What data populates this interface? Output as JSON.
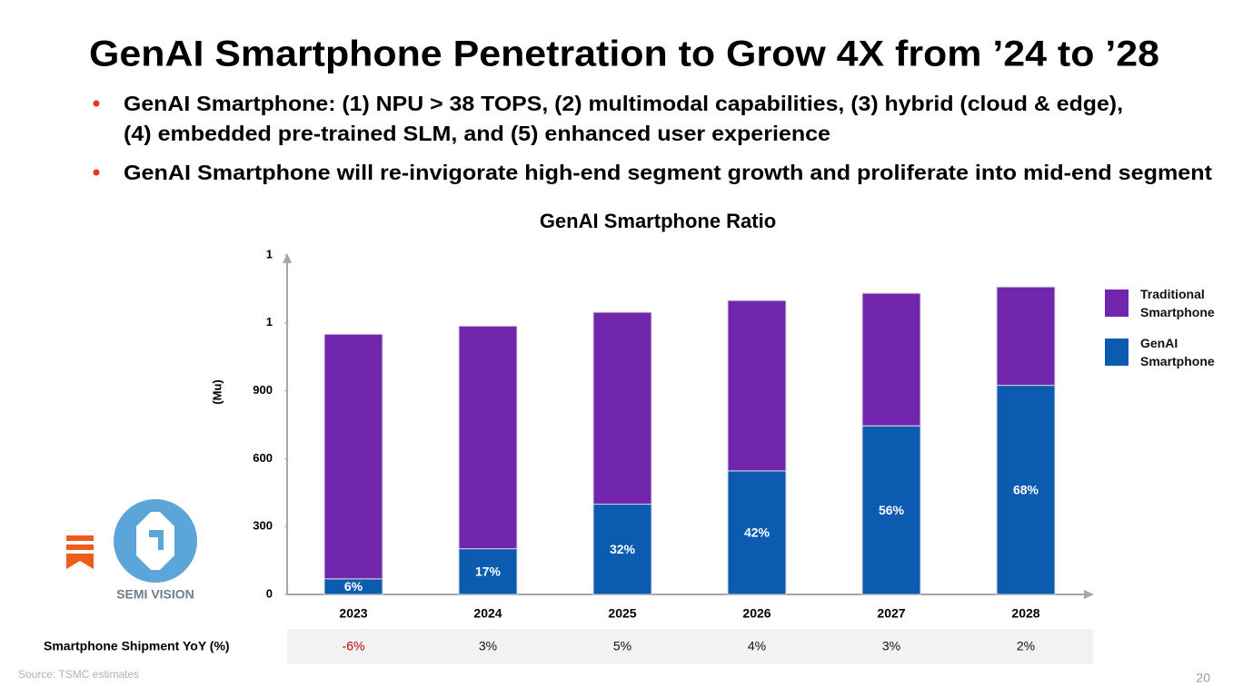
{
  "title": "GenAI Smartphone Penetration to Grow 4X from ’24 to ’28",
  "bullets": [
    [
      "GenAI Smartphone: (1) NPU > 38 TOPS, (2) multimodal capabilities, (3) hybrid (cloud & edge),",
      "(4) embedded pre-trained SLM, and (5) enhanced user experience"
    ],
    [
      "GenAI Smartphone will re-invigorate high-end segment growth and proliferate into mid-end segment"
    ]
  ],
  "chart_data": {
    "type": "bar",
    "stacked": true,
    "title": "GenAI Smartphone Ratio",
    "ylabel": "(Mu)",
    "categories": [
      "2023",
      "2024",
      "2025",
      "2026",
      "2027",
      "2028"
    ],
    "series": [
      {
        "name": "GenAI Smartphone",
        "color": "#0b5cb0",
        "values": [
          69,
          202,
          399,
          546,
          745,
          924
        ],
        "value_labels": [
          {
            "value": 6,
            "label": "6%"
          },
          {
            "value": 17,
            "label": "17%"
          },
          {
            "value": 32,
            "label": "32%"
          },
          {
            "value": 42,
            "label": "42%"
          },
          {
            "value": 56,
            "label": "56%"
          },
          {
            "value": 68,
            "label": "68%"
          }
        ]
      },
      {
        "name": "Traditional Smartphone",
        "color": "#7126ad",
        "values": [
          1081,
          984,
          848,
          753,
          586,
          435
        ]
      }
    ],
    "ylim": [
      0,
      1500
    ],
    "yticks": [
      0,
      300,
      600,
      900,
      {
        "value": 1200,
        "label": "1"
      },
      {
        "value": 1500,
        "label": "1"
      }
    ],
    "grid": false,
    "legend": "right"
  },
  "table": {
    "label": "Smartphone Shipment YoY (%)",
    "values": [
      "-6%",
      "3%",
      "5%",
      "4%",
      "3%",
      "2%"
    ],
    "negative_color": "#c00000"
  },
  "logo": "SEMI VISION",
  "source": "Source: TSMC estimates",
  "page_number": "20"
}
